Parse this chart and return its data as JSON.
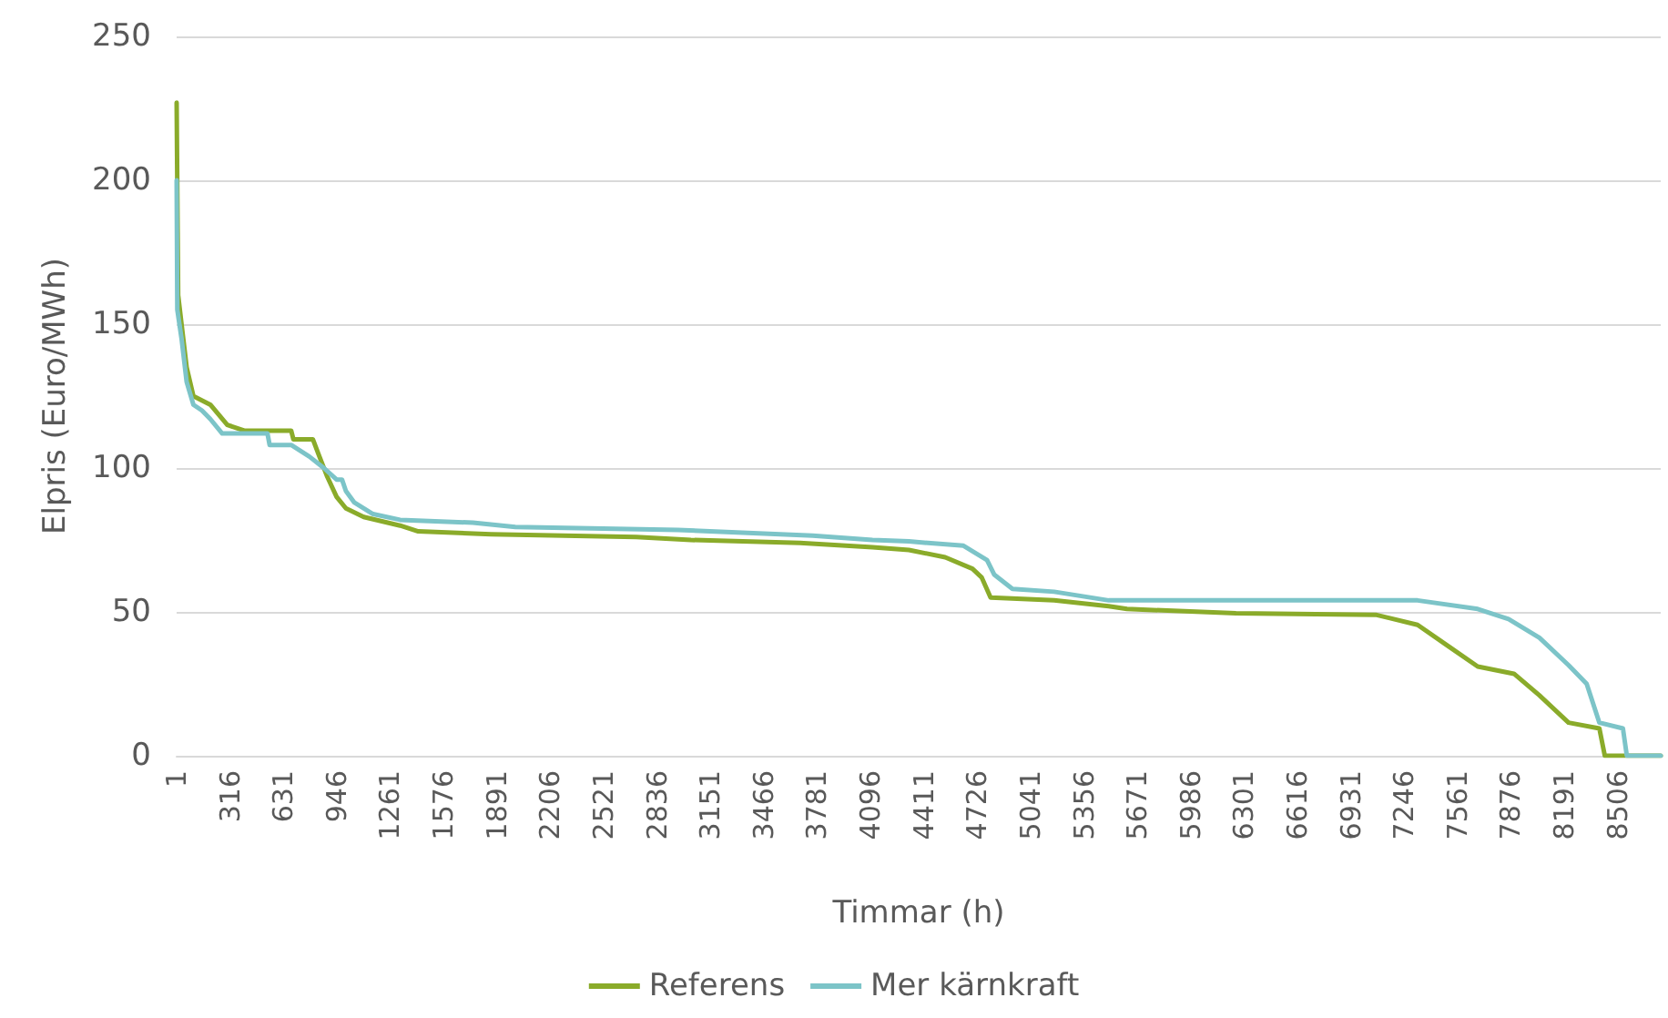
{
  "chart_data": {
    "type": "line",
    "xlabel": "Timmar (h)",
    "ylabel": "Elpris (Euro/MWh)",
    "xlim": [
      1,
      8760
    ],
    "xticks": [
      1,
      316,
      631,
      946,
      1261,
      1576,
      1891,
      2206,
      2521,
      2836,
      3151,
      3466,
      3781,
      4096,
      4411,
      4726,
      5041,
      5356,
      5671,
      5986,
      6301,
      6616,
      6931,
      7246,
      7561,
      7876,
      8191,
      8506
    ],
    "ylim": [
      0,
      250
    ],
    "yticks": [
      0,
      50,
      100,
      150,
      200,
      250
    ],
    "grid": "y",
    "legend": "bottom",
    "marker": "none",
    "line_style": "solid",
    "series": [
      {
        "name": "Referens",
        "color": "#8aab2a",
        "x": [
          1,
          10,
          30,
          60,
          100,
          200,
          300,
          400,
          677,
          690,
          805,
          837,
          890,
          945,
          1000,
          1105,
          1320,
          1427,
          1856,
          2714,
          3036,
          3680,
          4108,
          4323,
          4537,
          4698,
          4752,
          4805,
          5180,
          5502,
          5610,
          6253,
          7078,
          7325,
          7508,
          7680,
          7894,
          8044,
          8216,
          8398,
          8430,
          8760
        ],
        "values": [
          227,
          160,
          150,
          135,
          125,
          122,
          115,
          113,
          113,
          110,
          110,
          105,
          97,
          90,
          86,
          83,
          80,
          78,
          77,
          76,
          75,
          74,
          72.5,
          71.5,
          69,
          65,
          62,
          55,
          54,
          52,
          51,
          49.5,
          49,
          45.5,
          38,
          31,
          28.5,
          21,
          11.5,
          9.5,
          0,
          0
        ]
      },
      {
        "name": "Mer kärnkraft",
        "color": "#7cc4c8",
        "x": [
          1,
          5,
          30,
          60,
          100,
          150,
          200,
          270,
          537,
          550,
          677,
          784,
          870,
          945,
          977,
          1000,
          1050,
          1160,
          1320,
          1750,
          2000,
          2960,
          3755,
          4108,
          4323,
          4645,
          4784,
          4826,
          4934,
          5180,
          5502,
          7325,
          7680,
          7862,
          8044,
          8216,
          8323,
          8398,
          8537,
          8560,
          8760
        ],
        "values": [
          200,
          155,
          145,
          130,
          122,
          120,
          117,
          112,
          112,
          108,
          108,
          104,
          100,
          96,
          96,
          92,
          88,
          84,
          82,
          81,
          79.5,
          78.5,
          76.5,
          75,
          74.5,
          73,
          68,
          63,
          58,
          57,
          54,
          54,
          51,
          47.5,
          41,
          31.5,
          25,
          11.5,
          9.5,
          0,
          0
        ]
      }
    ]
  }
}
